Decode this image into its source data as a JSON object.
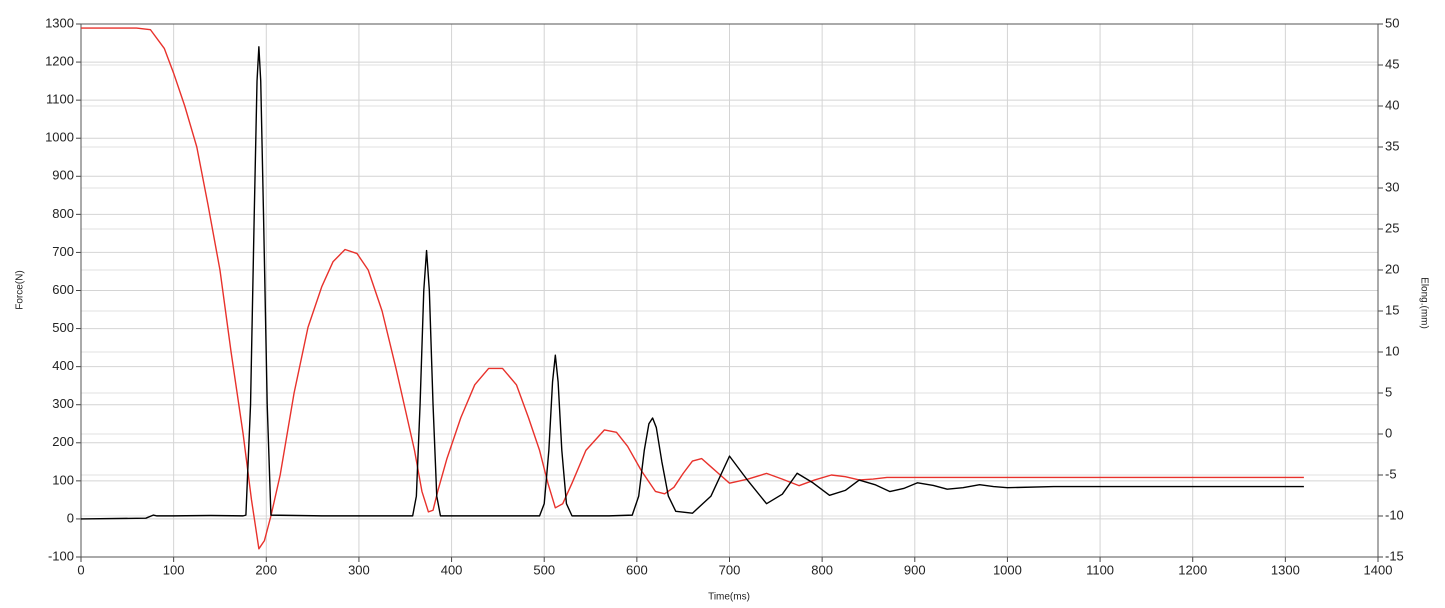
{
  "chart_data": {
    "type": "line",
    "xlabel": "Time(ms)",
    "ylabel": "Force(N)",
    "y2label": "Elong.(mm)",
    "xlim": [
      0,
      1400
    ],
    "xticks": [
      0,
      100,
      200,
      300,
      400,
      500,
      600,
      700,
      800,
      900,
      1000,
      1100,
      1200,
      1300,
      1400
    ],
    "ylim": [
      -100,
      1300
    ],
    "yticks": [
      -100,
      0,
      100,
      200,
      300,
      400,
      500,
      600,
      700,
      800,
      900,
      1000,
      1100,
      1200,
      1300
    ],
    "y2lim": [
      -15,
      50
    ],
    "y2ticks": [
      -15,
      -10,
      -5,
      0,
      5,
      10,
      15,
      20,
      25,
      30,
      35,
      40,
      45,
      50
    ],
    "grid": true,
    "series": [
      {
        "color": "#000000",
        "axis": "y",
        "x": [
          0,
          70,
          78,
          82,
          100,
          140,
          175,
          178,
          183,
          187,
          190,
          192,
          194,
          197,
          201,
          205,
          260,
          358,
          362,
          366,
          370,
          373,
          376,
          380,
          384,
          388,
          450,
          495,
          500,
          505,
          509,
          512,
          515,
          519,
          524,
          530,
          570,
          595,
          602,
          608,
          613,
          617,
          621,
          627,
          634,
          642,
          660,
          680,
          700,
          720,
          740,
          757,
          773,
          790,
          808,
          825,
          840,
          857,
          873,
          888,
          903,
          920,
          935,
          952,
          970,
          985,
          1000,
          1050,
          1100,
          1200,
          1320
        ],
        "values": [
          0,
          2,
          10,
          8,
          8,
          9,
          8,
          10,
          300,
          800,
          1150,
          1240,
          1150,
          800,
          300,
          10,
          8,
          8,
          60,
          300,
          600,
          705,
          600,
          300,
          60,
          8,
          8,
          8,
          40,
          180,
          360,
          430,
          360,
          180,
          40,
          8,
          8,
          10,
          60,
          180,
          250,
          265,
          240,
          150,
          60,
          20,
          15,
          60,
          165,
          100,
          40,
          65,
          120,
          95,
          62,
          75,
          102,
          90,
          72,
          80,
          95,
          88,
          78,
          82,
          90,
          85,
          82,
          85,
          85,
          85,
          85
        ]
      },
      {
        "color": "#e8322c",
        "axis": "y2",
        "x": [
          0,
          60,
          75,
          90,
          100,
          112,
          125,
          137,
          150,
          162,
          175,
          184,
          192,
          198,
          205,
          215,
          230,
          245,
          260,
          272,
          285,
          298,
          310,
          325,
          340,
          350,
          360,
          368,
          375,
          380,
          385,
          395,
          410,
          425,
          440,
          455,
          470,
          483,
          495,
          504,
          512,
          520,
          530,
          545,
          565,
          578,
          590,
          605,
          620,
          630,
          640,
          650,
          660,
          670,
          680,
          690,
          700,
          720,
          740,
          757,
          775,
          792,
          810,
          825,
          840,
          855,
          870,
          900,
          1000,
          1100,
          1200,
          1320
        ],
        "values": [
          49.5,
          49.5,
          49.3,
          47,
          44,
          40,
          35,
          28,
          20,
          10,
          0,
          -8,
          -14,
          -13,
          -10,
          -5,
          5,
          13,
          18,
          21,
          22.5,
          22,
          20,
          15,
          8,
          3,
          -2,
          -7,
          -9.5,
          -9.3,
          -7,
          -3,
          2,
          6,
          8,
          8,
          6,
          2,
          -2,
          -6,
          -9,
          -8.5,
          -6,
          -2,
          0.5,
          0.2,
          -1.5,
          -4.5,
          -7,
          -7.3,
          -6.5,
          -4.8,
          -3.3,
          -3,
          -4,
          -5,
          -6,
          -5.5,
          -4.8,
          -5.5,
          -6.3,
          -5.6,
          -5,
          -5.2,
          -5.6,
          -5.5,
          -5.3,
          -5.3,
          -5.3,
          -5.3,
          -5.3,
          -5.3
        ]
      }
    ]
  }
}
